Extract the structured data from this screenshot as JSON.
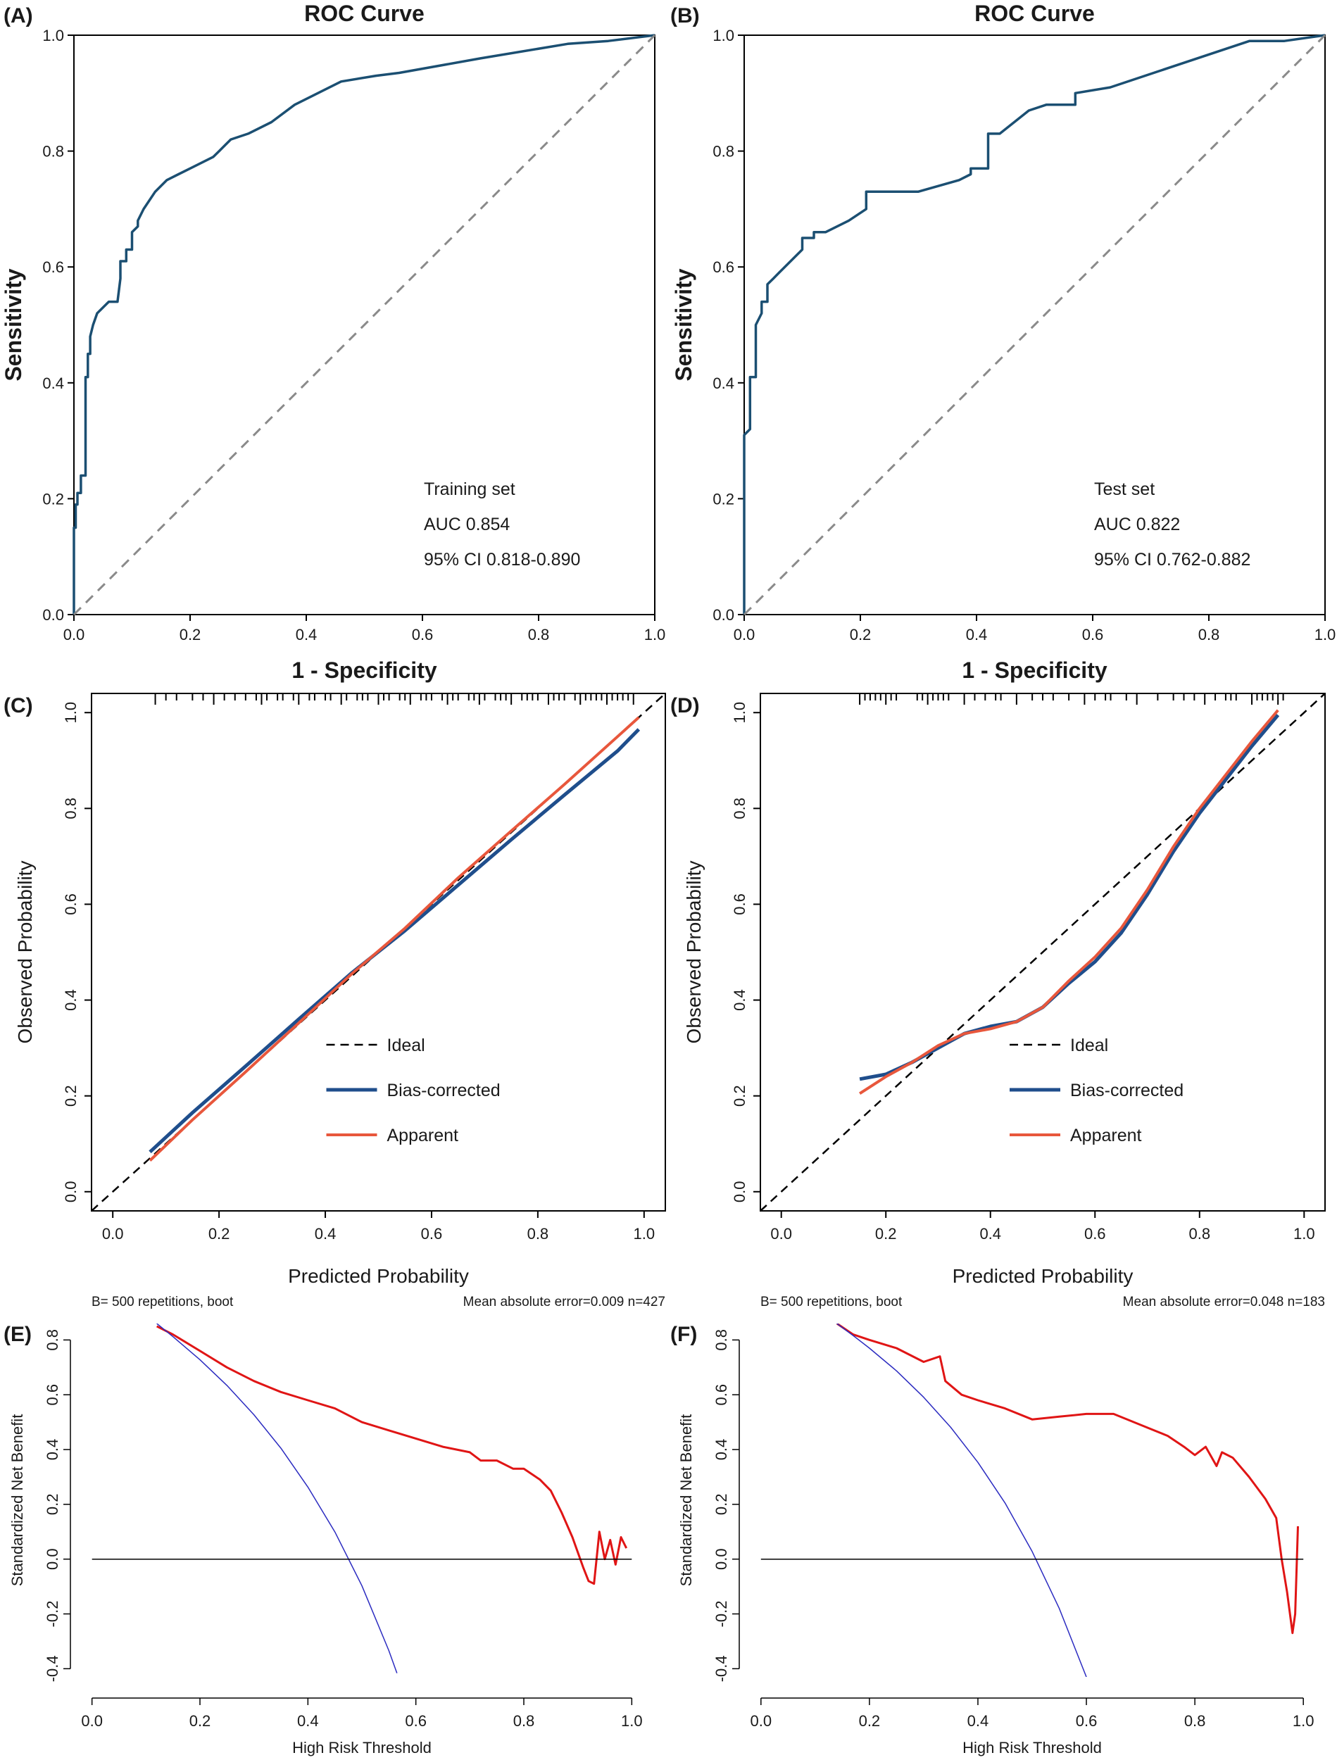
{
  "colors": {
    "roc_curve": "#1b4f72",
    "diagonal": "#8a8a8a",
    "bias_corrected": "#1f4e8c",
    "apparent": "#e8573c",
    "dca_model": "#e01515",
    "dca_all": "#2b2bc0",
    "dca_none": "#000000",
    "axes": "#000000"
  },
  "chart_data": [
    {
      "panel": "(A)",
      "type": "line",
      "title": "ROC Curve",
      "xlabel": "1 - Specificity",
      "ylabel": "Sensitivity",
      "xlim": [
        0,
        1
      ],
      "ylim": [
        0,
        1
      ],
      "xticks": [
        "0.0",
        "0.2",
        "0.4",
        "0.6",
        "0.8",
        "1.0"
      ],
      "yticks": [
        "0.0",
        "0.2",
        "0.4",
        "0.6",
        "0.8",
        "1.0"
      ],
      "annotations": [
        "Training set",
        "AUC 0.854",
        "95% CI 0.818-0.890"
      ],
      "series": [
        {
          "style": "roc",
          "x": [
            0.0,
            0.0,
            0.003,
            0.003,
            0.006,
            0.006,
            0.012,
            0.012,
            0.02,
            0.02,
            0.024,
            0.024,
            0.028,
            0.028,
            0.033,
            0.04,
            0.05,
            0.06,
            0.075,
            0.08,
            0.08,
            0.09,
            0.09,
            0.1,
            0.1,
            0.11,
            0.11,
            0.12,
            0.14,
            0.16,
            0.18,
            0.2,
            0.22,
            0.24,
            0.25,
            0.26,
            0.27,
            0.3,
            0.34,
            0.38,
            0.42,
            0.46,
            0.52,
            0.56,
            0.7,
            0.85,
            0.92,
            1.0
          ],
          "y": [
            0.0,
            0.15,
            0.15,
            0.19,
            0.19,
            0.21,
            0.21,
            0.24,
            0.24,
            0.41,
            0.41,
            0.45,
            0.45,
            0.48,
            0.5,
            0.52,
            0.53,
            0.54,
            0.54,
            0.58,
            0.61,
            0.61,
            0.63,
            0.63,
            0.66,
            0.67,
            0.68,
            0.7,
            0.73,
            0.75,
            0.76,
            0.77,
            0.78,
            0.79,
            0.8,
            0.81,
            0.82,
            0.83,
            0.85,
            0.88,
            0.9,
            0.92,
            0.93,
            0.935,
            0.96,
            0.985,
            0.99,
            1.0
          ]
        },
        {
          "style": "diagonal",
          "x": [
            0,
            1
          ],
          "y": [
            0,
            1
          ]
        }
      ]
    },
    {
      "panel": "(B)",
      "type": "line",
      "title": "ROC Curve",
      "xlabel": "1 - Specificity",
      "ylabel": "Sensitivity",
      "xlim": [
        0,
        1
      ],
      "ylim": [
        0,
        1
      ],
      "xticks": [
        "0.0",
        "0.2",
        "0.4",
        "0.6",
        "0.8",
        "1.0"
      ],
      "yticks": [
        "0.0",
        "0.2",
        "0.4",
        "0.6",
        "0.8",
        "1.0"
      ],
      "annotations": [
        "Test set",
        "AUC 0.822",
        "95% CI 0.762-0.882"
      ],
      "series": [
        {
          "style": "roc",
          "x": [
            0.0,
            0.0,
            0.01,
            0.01,
            0.02,
            0.02,
            0.03,
            0.03,
            0.04,
            0.04,
            0.05,
            0.05,
            0.06,
            0.1,
            0.1,
            0.12,
            0.12,
            0.14,
            0.18,
            0.21,
            0.21,
            0.3,
            0.37,
            0.39,
            0.39,
            0.42,
            0.42,
            0.44,
            0.49,
            0.52,
            0.57,
            0.57,
            0.63,
            0.87,
            0.93,
            1.0
          ],
          "y": [
            0.0,
            0.31,
            0.32,
            0.41,
            0.41,
            0.5,
            0.52,
            0.54,
            0.54,
            0.57,
            0.58,
            0.58,
            0.59,
            0.63,
            0.65,
            0.65,
            0.66,
            0.66,
            0.68,
            0.7,
            0.73,
            0.73,
            0.75,
            0.76,
            0.77,
            0.77,
            0.83,
            0.83,
            0.87,
            0.88,
            0.88,
            0.9,
            0.91,
            0.99,
            0.99,
            1.0
          ]
        },
        {
          "style": "diagonal",
          "x": [
            0,
            1
          ],
          "y": [
            0,
            1
          ]
        }
      ]
    },
    {
      "panel": "(C)",
      "type": "line",
      "xlabel": "Predicted Probability",
      "ylabel": "Observed Probability",
      "xlim": [
        -0.04,
        1.04
      ],
      "ylim": [
        -0.04,
        1.04
      ],
      "xticks": [
        "0.0",
        "0.2",
        "0.4",
        "0.6",
        "0.8",
        "1.0"
      ],
      "yticks": [
        "0.0",
        "0.2",
        "0.4",
        "0.6",
        "0.8",
        "1.0"
      ],
      "footer_left": "B= 500 repetitions, boot",
      "footer_right": "Mean absolute error=0.009 n=427",
      "legend": [
        "Ideal",
        "Bias-corrected",
        "Apparent"
      ],
      "rug": [
        0.08,
        0.1,
        0.12,
        0.15,
        0.17,
        0.19,
        0.21,
        0.23,
        0.25,
        0.27,
        0.28,
        0.29,
        0.31,
        0.32,
        0.34,
        0.35,
        0.37,
        0.38,
        0.4,
        0.41,
        0.43,
        0.44,
        0.46,
        0.47,
        0.48,
        0.5,
        0.51,
        0.52,
        0.54,
        0.55,
        0.56,
        0.58,
        0.59,
        0.6,
        0.62,
        0.63,
        0.64,
        0.65,
        0.67,
        0.68,
        0.69,
        0.7,
        0.72,
        0.73,
        0.74,
        0.75,
        0.77,
        0.78,
        0.79,
        0.8,
        0.82,
        0.83,
        0.84,
        0.85,
        0.87,
        0.88,
        0.89,
        0.9,
        0.91,
        0.92,
        0.93,
        0.94,
        0.95,
        0.96,
        0.97,
        0.98
      ],
      "series": [
        {
          "name": "Ideal",
          "style": "ideal",
          "x": [
            -0.04,
            1.04
          ],
          "y": [
            -0.04,
            1.04
          ]
        },
        {
          "name": "Bias-corrected",
          "style": "bias",
          "x": [
            0.07,
            0.15,
            0.25,
            0.35,
            0.45,
            0.55,
            0.65,
            0.75,
            0.85,
            0.95,
            0.99
          ],
          "y": [
            0.083,
            0.165,
            0.262,
            0.36,
            0.457,
            0.545,
            0.64,
            0.735,
            0.828,
            0.92,
            0.965
          ]
        },
        {
          "name": "Apparent",
          "style": "apparent",
          "x": [
            0.07,
            0.15,
            0.25,
            0.35,
            0.45,
            0.55,
            0.65,
            0.75,
            0.85,
            0.95,
            0.99
          ],
          "y": [
            0.065,
            0.15,
            0.25,
            0.352,
            0.455,
            0.55,
            0.655,
            0.753,
            0.85,
            0.95,
            0.99
          ]
        }
      ]
    },
    {
      "panel": "(D)",
      "type": "line",
      "xlabel": "Predicted Probability",
      "ylabel": "Observed Probability",
      "xlim": [
        -0.04,
        1.04
      ],
      "ylim": [
        -0.04,
        1.04
      ],
      "xticks": [
        "0.0",
        "0.2",
        "0.4",
        "0.6",
        "0.8",
        "1.0"
      ],
      "yticks": [
        "0.0",
        "0.2",
        "0.4",
        "0.6",
        "0.8",
        "1.0"
      ],
      "footer_left": "B= 500 repetitions, boot",
      "footer_right": "Mean absolute error=0.048 n=183",
      "legend": [
        "Ideal",
        "Bias-corrected",
        "Apparent"
      ],
      "rug": [
        0.15,
        0.16,
        0.17,
        0.18,
        0.19,
        0.2,
        0.21,
        0.22,
        0.26,
        0.27,
        0.28,
        0.29,
        0.3,
        0.31,
        0.32,
        0.35,
        0.37,
        0.39,
        0.41,
        0.42,
        0.45,
        0.48,
        0.5,
        0.52,
        0.55,
        0.58,
        0.6,
        0.62,
        0.63,
        0.66,
        0.68,
        0.72,
        0.75,
        0.77,
        0.79,
        0.81,
        0.83,
        0.85,
        0.86,
        0.87,
        0.9,
        0.91,
        0.92,
        0.93,
        0.94,
        0.95,
        0.96
      ],
      "series": [
        {
          "name": "Ideal",
          "style": "ideal",
          "x": [
            -0.04,
            1.04
          ],
          "y": [
            -0.04,
            1.04
          ]
        },
        {
          "name": "Bias-corrected",
          "style": "bias",
          "x": [
            0.15,
            0.2,
            0.25,
            0.3,
            0.35,
            0.4,
            0.45,
            0.5,
            0.55,
            0.6,
            0.65,
            0.7,
            0.75,
            0.8,
            0.85,
            0.9,
            0.95
          ],
          "y": [
            0.235,
            0.245,
            0.27,
            0.3,
            0.33,
            0.345,
            0.355,
            0.385,
            0.435,
            0.48,
            0.54,
            0.62,
            0.71,
            0.79,
            0.86,
            0.93,
            0.995
          ]
        },
        {
          "name": "Apparent",
          "style": "apparent",
          "x": [
            0.15,
            0.2,
            0.25,
            0.3,
            0.35,
            0.4,
            0.45,
            0.5,
            0.55,
            0.6,
            0.65,
            0.7,
            0.75,
            0.8,
            0.85,
            0.9,
            0.95
          ],
          "y": [
            0.205,
            0.24,
            0.27,
            0.305,
            0.33,
            0.34,
            0.355,
            0.385,
            0.44,
            0.49,
            0.55,
            0.63,
            0.72,
            0.8,
            0.87,
            0.94,
            1.005
          ]
        }
      ]
    },
    {
      "panel": "(E)",
      "type": "line",
      "xlabel": "High Risk Threshold",
      "ylabel": "Standardized Net Benefit",
      "xlim": [
        -0.04,
        1.04
      ],
      "ylim": [
        -0.43,
        0.86
      ],
      "xticks": [
        "0.0",
        "0.2",
        "0.4",
        "0.6",
        "0.8",
        "1.0"
      ],
      "yticks": [
        "-0.4",
        "-0.2",
        "0.0",
        "0.2",
        "0.4",
        "0.6",
        "0.8"
      ],
      "series": [
        {
          "style": "model",
          "x": [
            0.12,
            0.15,
            0.2,
            0.25,
            0.3,
            0.35,
            0.4,
            0.45,
            0.5,
            0.55,
            0.6,
            0.65,
            0.7,
            0.72,
            0.75,
            0.78,
            0.8,
            0.83,
            0.85,
            0.87,
            0.89,
            0.91,
            0.92,
            0.93,
            0.94,
            0.95,
            0.96,
            0.97,
            0.98,
            0.99
          ],
          "y": [
            0.85,
            0.82,
            0.76,
            0.7,
            0.65,
            0.61,
            0.58,
            0.55,
            0.5,
            0.47,
            0.44,
            0.41,
            0.39,
            0.36,
            0.36,
            0.33,
            0.33,
            0.29,
            0.25,
            0.17,
            0.08,
            -0.03,
            -0.08,
            -0.09,
            0.1,
            0.0,
            0.07,
            -0.02,
            0.08,
            0.04
          ]
        },
        {
          "style": "all",
          "x": [
            0.12,
            0.15,
            0.2,
            0.25,
            0.3,
            0.35,
            0.4,
            0.45,
            0.5,
            0.55,
            0.565
          ],
          "y": [
            0.86,
            0.812,
            0.728,
            0.634,
            0.527,
            0.405,
            0.263,
            0.099,
            -0.097,
            -0.334,
            -0.416
          ]
        },
        {
          "style": "none",
          "x": [
            0.0,
            1.0
          ],
          "y": [
            0.0,
            0.0
          ]
        }
      ]
    },
    {
      "panel": "(F)",
      "type": "line",
      "xlabel": "High Risk Threshold",
      "ylabel": "Standardized Net Benefit",
      "xlim": [
        -0.04,
        1.04
      ],
      "ylim": [
        -0.43,
        0.86
      ],
      "xticks": [
        "0.0",
        "0.2",
        "0.4",
        "0.6",
        "0.8",
        "1.0"
      ],
      "yticks": [
        "-0.4",
        "-0.2",
        "0.0",
        "0.2",
        "0.4",
        "0.6",
        "0.8"
      ],
      "series": [
        {
          "style": "model",
          "x": [
            0.14,
            0.17,
            0.2,
            0.25,
            0.3,
            0.33,
            0.34,
            0.37,
            0.4,
            0.45,
            0.5,
            0.55,
            0.6,
            0.65,
            0.7,
            0.75,
            0.78,
            0.8,
            0.82,
            0.84,
            0.85,
            0.87,
            0.9,
            0.93,
            0.95,
            0.96,
            0.97,
            0.98,
            0.985,
            0.99
          ],
          "y": [
            0.86,
            0.82,
            0.8,
            0.77,
            0.72,
            0.74,
            0.65,
            0.6,
            0.58,
            0.55,
            0.51,
            0.52,
            0.53,
            0.53,
            0.49,
            0.45,
            0.41,
            0.38,
            0.41,
            0.34,
            0.39,
            0.37,
            0.3,
            0.22,
            0.15,
            0.0,
            -0.12,
            -0.27,
            -0.2,
            0.12
          ]
        },
        {
          "style": "all",
          "x": [
            0.14,
            0.17,
            0.2,
            0.25,
            0.3,
            0.35,
            0.4,
            0.45,
            0.5,
            0.55,
            0.6
          ],
          "y": [
            0.86,
            0.816,
            0.77,
            0.687,
            0.591,
            0.481,
            0.353,
            0.205,
            0.028,
            -0.18,
            -0.43
          ]
        },
        {
          "style": "none",
          "x": [
            0.0,
            1.0
          ],
          "y": [
            0.0,
            0.0
          ]
        }
      ]
    }
  ]
}
